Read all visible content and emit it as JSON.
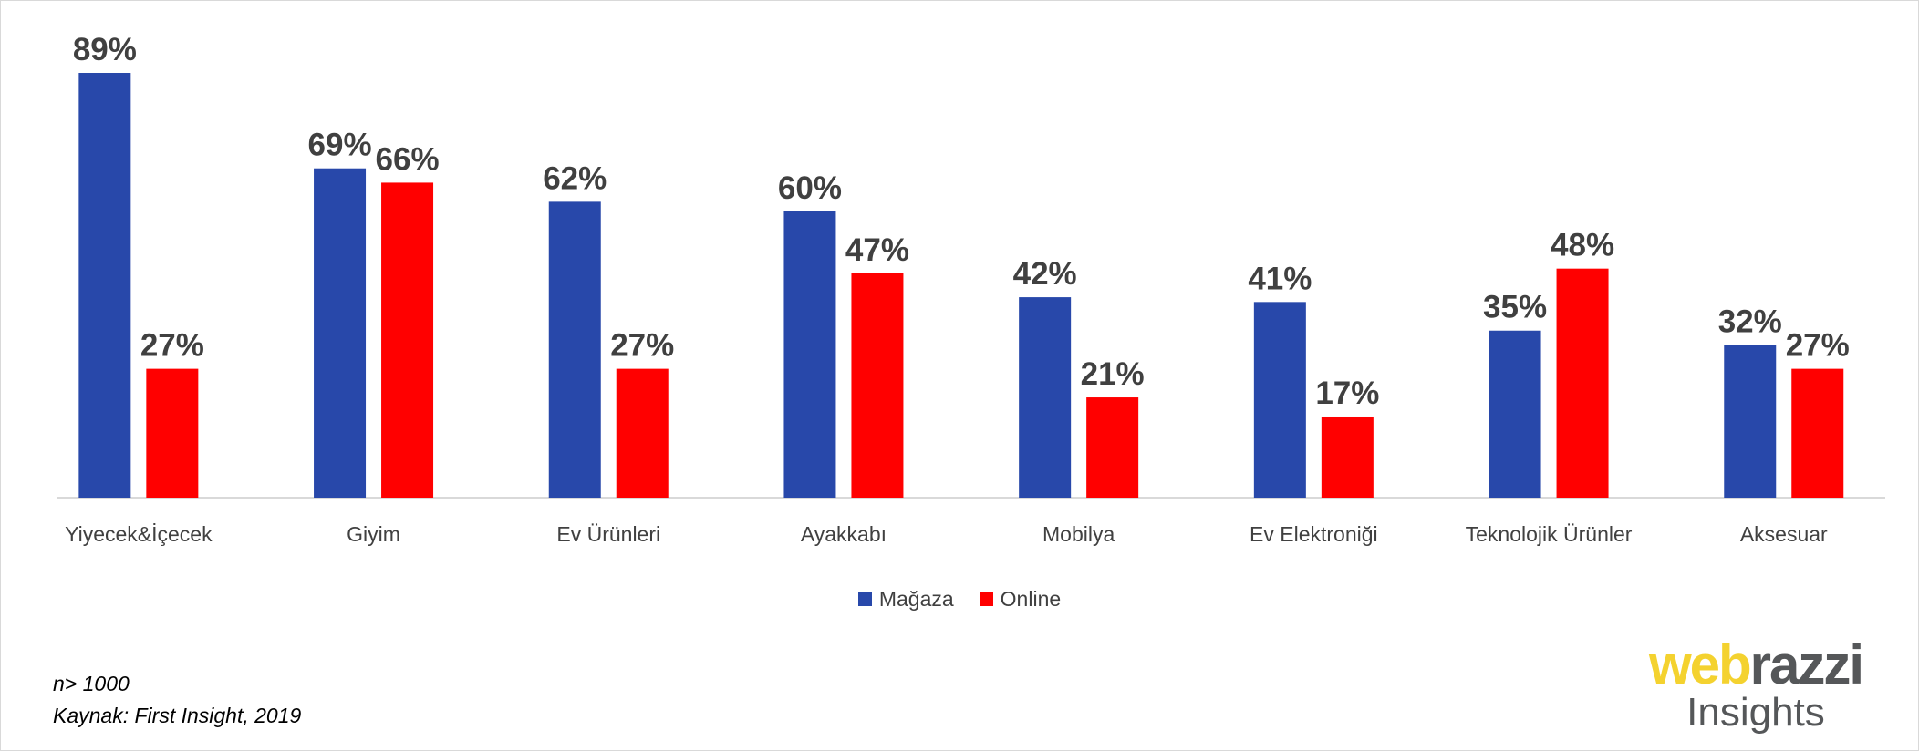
{
  "chart_data": {
    "type": "bar",
    "categories": [
      "Yiyecek&İçecek",
      "Giyim",
      "Ev Ürünleri",
      "Ayakkabı",
      "Mobilya",
      "Ev Elektroniği",
      "Teknolojik Ürünler",
      "Aksesuar"
    ],
    "series": [
      {
        "name": "Mağaza",
        "color": "#2848AA",
        "values": [
          89,
          69,
          62,
          60,
          42,
          41,
          35,
          32
        ],
        "labels": [
          "89%",
          "69%",
          "62%",
          "60%",
          "42%",
          "41%",
          "35%",
          "32%"
        ]
      },
      {
        "name": "Online",
        "color": "#FF0000",
        "values": [
          27,
          66,
          27,
          47,
          21,
          17,
          48,
          27
        ],
        "labels": [
          "27%",
          "66%",
          "27%",
          "47%",
          "21%",
          "17%",
          "48%",
          "27%"
        ]
      }
    ],
    "ylim": [
      0,
      89
    ],
    "grid": false,
    "legend_position": "bottom"
  },
  "footnote": {
    "sample": "n> 1000",
    "source": "Kaynak: First Insight, 2019"
  },
  "logo": {
    "part1": "web",
    "part2": "razzi",
    "line2": "Insights",
    "color1": "#F4D22F",
    "color2": "#555759"
  }
}
